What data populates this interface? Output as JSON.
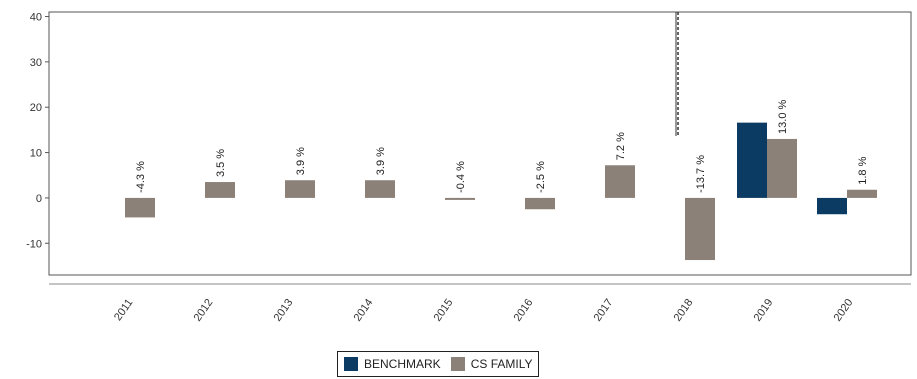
{
  "chart_data": {
    "type": "bar",
    "categories": [
      "2011",
      "2012",
      "2013",
      "2014",
      "2015",
      "2016",
      "2017",
      "2018",
      "2019",
      "2020"
    ],
    "y_ticks": [
      "40",
      "30",
      "20",
      "10",
      "0",
      "-10"
    ],
    "ylim": [
      -17,
      41
    ],
    "series": [
      {
        "name": "BENCHMARK",
        "color": "#0b3a63",
        "values": [
          null,
          null,
          null,
          null,
          null,
          null,
          null,
          null,
          16.6,
          -3.6
        ]
      },
      {
        "name": "CS FAMILY",
        "color": "#8c8179",
        "values": [
          -4.3,
          3.5,
          3.9,
          3.9,
          -0.4,
          -2.5,
          7.2,
          -13.7,
          13.0,
          1.8
        ],
        "labels": [
          "-4.3 %",
          "3.5 %",
          "3.9 %",
          "3.9 %",
          "-0.4 %",
          "-2.5 %",
          "7.2 %",
          "-13.7 %",
          "13.0 %",
          "1.8 %"
        ]
      }
    ],
    "annotation_marker_category": "2018",
    "grid": false,
    "legend_position": "bottom-center"
  }
}
